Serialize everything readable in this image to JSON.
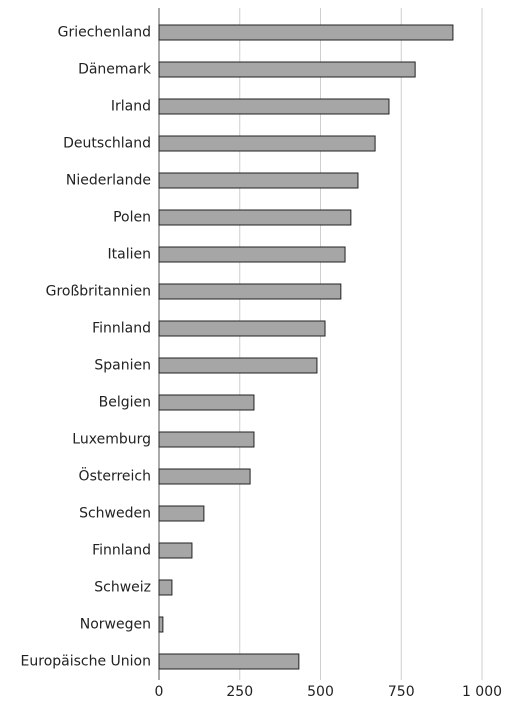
{
  "chart_data": {
    "type": "bar",
    "orientation": "horizontal",
    "categories": [
      "Griechenland",
      "Dänemark",
      "Irland",
      "Deutschland",
      "Niederlande",
      "Polen",
      "Italien",
      "Großbritannien",
      "Finnland",
      "Spanien",
      "Belgien",
      "Luxemburg",
      "Österreich",
      "Schweden",
      "Finnland",
      "Schweiz",
      "Norwegen",
      "Europäische Union"
    ],
    "values": [
      910,
      793,
      712,
      669,
      616,
      594,
      576,
      563,
      514,
      489,
      294,
      294,
      282,
      139,
      102,
      40,
      12,
      433
    ],
    "color": "#a6a6a6",
    "xlim": [
      0,
      1000
    ],
    "xticks": [
      0,
      250,
      500,
      750,
      {
        "value": 1000,
        "label": "1 000"
      }
    ],
    "grid": true
  }
}
